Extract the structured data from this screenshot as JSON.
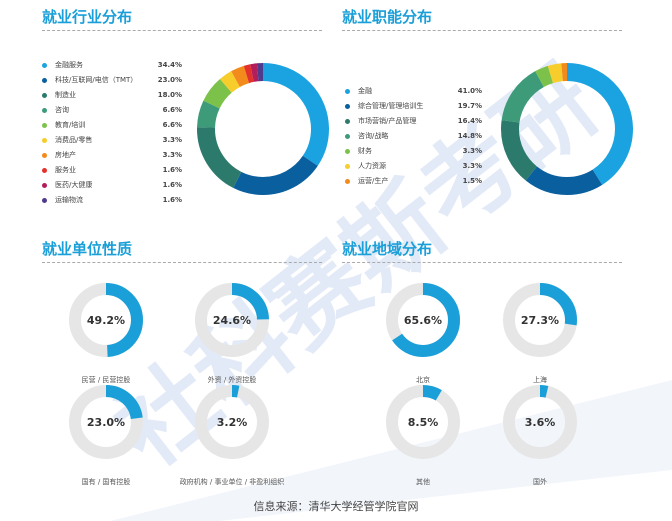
{
  "colors": {
    "accent": "#1a9fd8",
    "track": "#e6e6e6",
    "palette": [
      "#1aa3e0",
      "#0a5f9e",
      "#2c7a6c",
      "#3e9b79",
      "#7cc24a",
      "#f6cd2b",
      "#f28a1c",
      "#e4312b",
      "#b21e5c",
      "#4f3b8c"
    ]
  },
  "sections": {
    "industry": "就业行业分布",
    "function": "就业职能分布",
    "unit_type": "就业单位性质",
    "region": "就业地域分布"
  },
  "source_text": "信息来源：清华大学经管学院官网",
  "watermark_text": "社科赛斯考研",
  "chart_data": [
    {
      "id": "industry",
      "type": "pie",
      "title": "就业行业分布",
      "categories": [
        "金融服务",
        "科技/互联网/电信（TMT）",
        "制造业",
        "咨询",
        "教育/培训",
        "消费品/零售",
        "房地产",
        "服务业",
        "医药/大健康",
        "运输物流"
      ],
      "values": [
        34.4,
        23.0,
        18.0,
        6.6,
        6.6,
        3.3,
        3.3,
        1.6,
        1.6,
        1.6
      ],
      "labels": [
        "34.4%",
        "23.0%",
        "18.0%",
        "6.6%",
        "6.6%",
        "3.3%",
        "3.3%",
        "1.6%",
        "1.6%",
        "1.6%"
      ],
      "colors": [
        "#1aa3e0",
        "#0a5f9e",
        "#2c7a6c",
        "#3e9b79",
        "#7cc24a",
        "#f6cd2b",
        "#f28a1c",
        "#e4312b",
        "#b21e5c",
        "#4f3b8c"
      ]
    },
    {
      "id": "function",
      "type": "pie",
      "title": "就业职能分布",
      "categories": [
        "金融",
        "综合管理/管理培训生",
        "市场营销/产品管理",
        "咨询/战略",
        "财务",
        "人力资源",
        "运营/生产"
      ],
      "values": [
        41.0,
        19.7,
        16.4,
        14.8,
        3.3,
        3.3,
        1.5
      ],
      "labels": [
        "41.0%",
        "19.7%",
        "16.4%",
        "14.8%",
        "3.3%",
        "3.3%",
        "1.5%"
      ],
      "colors": [
        "#1aa3e0",
        "#0a5f9e",
        "#2c7a6c",
        "#3e9b79",
        "#7cc24a",
        "#f6cd2b",
        "#f28a1c"
      ]
    },
    {
      "id": "unit_type",
      "type": "pie",
      "title": "就业单位性质",
      "categories": [
        "民营 / 民营控股",
        "外资 / 外资控股",
        "国有 / 国有控股",
        "政府机构 / 事业单位 / 非盈利组织"
      ],
      "values": [
        49.2,
        24.6,
        23.0,
        3.2
      ],
      "labels": [
        "49.2%",
        "24.6%",
        "23.0%",
        "3.2%"
      ]
    },
    {
      "id": "region",
      "type": "pie",
      "title": "就业地域分布",
      "categories": [
        "北京",
        "上海",
        "其他",
        "国外"
      ],
      "values": [
        65.6,
        27.3,
        8.5,
        3.6
      ],
      "labels": [
        "65.6%",
        "27.3%",
        "8.5%",
        "3.6%"
      ]
    }
  ]
}
